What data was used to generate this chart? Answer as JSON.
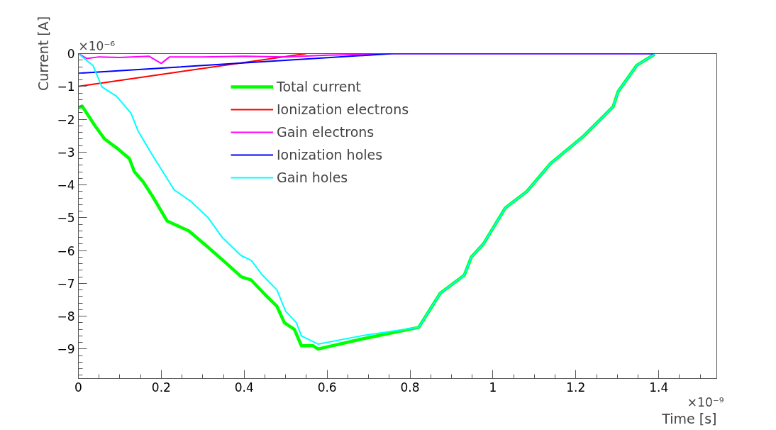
{
  "chart_data": {
    "type": "line",
    "xlabel": "Time [s]",
    "ylabel": "Current [A]",
    "xlim": [
      0,
      1.54
    ],
    "ylim": [
      -9.9,
      0
    ],
    "xticks": [
      0,
      0.2,
      0.4,
      0.6,
      0.8,
      1,
      1.2,
      1.4
    ],
    "yticks": [
      0,
      -1,
      -2,
      -3,
      -4,
      -5,
      -6,
      -7,
      -8,
      -9
    ],
    "grid": false,
    "legend": "top",
    "marker": "none",
    "line_style": "solid",
    "annotations": [
      "×10⁻⁶",
      "×10⁻⁹"
    ],
    "series": [
      {
        "name": "Total current",
        "color": "#00ff00",
        "x": [
          0,
          0.009,
          0.04,
          0.063,
          0.095,
          0.123,
          0.135,
          0.156,
          0.179,
          0.214,
          0.266,
          0.313,
          0.358,
          0.393,
          0.417,
          0.451,
          0.479,
          0.497,
          0.521,
          0.538,
          0.566,
          0.578,
          0.682,
          0.821,
          0.873,
          0.931,
          0.948,
          0.977,
          1.03,
          1.082,
          1.139,
          1.22,
          1.29,
          1.302,
          1.347,
          1.39
        ],
        "values": [
          -1.66,
          -1.6,
          -2.2,
          -2.6,
          -2.9,
          -3.2,
          -3.6,
          -3.9,
          -4.35,
          -5.1,
          -5.4,
          -5.9,
          -6.4,
          -6.8,
          -6.9,
          -7.35,
          -7.7,
          -8.2,
          -8.4,
          -8.9,
          -8.9,
          -9.0,
          -8.7,
          -8.34,
          -7.3,
          -6.75,
          -6.2,
          -5.8,
          -4.7,
          -4.2,
          -3.35,
          -2.5,
          -1.62,
          -1.16,
          -0.36,
          -0.02
        ]
      },
      {
        "name": "Ionization electrons",
        "color": "#ff0000",
        "x": [
          0,
          0.55
        ],
        "values": [
          -1.0,
          0
        ]
      },
      {
        "name": "Gain electrons",
        "color": "#ff00ff",
        "x": [
          0,
          0.02,
          0.05,
          0.1,
          0.17,
          0.2,
          0.22,
          0.3,
          0.4,
          0.5,
          0.6,
          0.7,
          0.75,
          1.39
        ],
        "values": [
          0,
          -0.15,
          -0.1,
          -0.12,
          -0.08,
          -0.3,
          -0.1,
          -0.1,
          -0.08,
          -0.1,
          -0.05,
          -0.02,
          0,
          0
        ]
      },
      {
        "name": "Ionization holes",
        "color": "#0000ff",
        "x": [
          0,
          0.76,
          1.39
        ],
        "values": [
          -0.6,
          0,
          0
        ]
      },
      {
        "name": "Gain holes",
        "color": "#00ffff",
        "x": [
          0,
          0.035,
          0.057,
          0.092,
          0.127,
          0.144,
          0.179,
          0.231,
          0.271,
          0.313,
          0.347,
          0.392,
          0.417,
          0.444,
          0.479,
          0.5,
          0.526,
          0.538,
          0.578,
          0.682,
          0.821,
          0.873,
          0.931,
          0.948,
          0.977,
          1.03,
          1.082,
          1.139,
          1.22,
          1.29,
          1.302,
          1.347,
          1.39
        ],
        "values": [
          0,
          -0.36,
          -1.02,
          -1.3,
          -1.82,
          -2.36,
          -3.1,
          -4.15,
          -4.5,
          -5.0,
          -5.6,
          -6.15,
          -6.3,
          -6.75,
          -7.2,
          -7.85,
          -8.2,
          -8.6,
          -8.85,
          -8.6,
          -8.34,
          -7.3,
          -6.75,
          -6.2,
          -5.8,
          -4.7,
          -4.2,
          -3.35,
          -2.5,
          -1.62,
          -1.16,
          -0.36,
          -0.02
        ]
      }
    ]
  }
}
